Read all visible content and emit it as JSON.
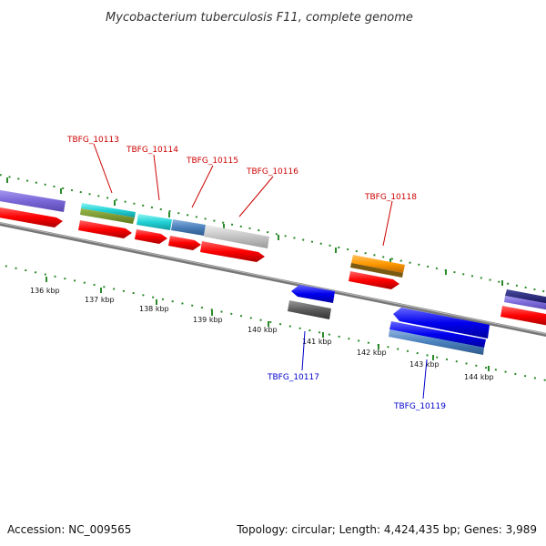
{
  "title": "Mycobacterium tuberculosis F11, complete genome",
  "footer": {
    "accession": "Accession: NC_009565",
    "summary": "Topology: circular; Length: 4,424,435 bp; Genes: 3,989"
  },
  "ruler": {
    "unit": "kbp",
    "ticks": [
      {
        "label": "136 kbp"
      },
      {
        "label": "137 kbp"
      },
      {
        "label": "138 kbp"
      },
      {
        "label": "139 kbp"
      },
      {
        "label": "140 kbp"
      },
      {
        "label": "141 kbp"
      },
      {
        "label": "142 kbp"
      },
      {
        "label": "143 kbp"
      },
      {
        "label": "144 kbp"
      }
    ]
  },
  "colors": {
    "forward_label": "#cc0000",
    "reverse_label": "#0000cc",
    "cds": "#ff0000",
    "tick": "#2a8a2a",
    "backbone": "#888888"
  },
  "gene_labels": {
    "g10113": "TBFG_10113",
    "g10114": "TBFG_10114",
    "g10115": "TBFG_10115",
    "g10116": "TBFG_10116",
    "g10117": "TBFG_10117",
    "g10118": "TBFG_10118",
    "g10119": "TBFG_10119"
  }
}
